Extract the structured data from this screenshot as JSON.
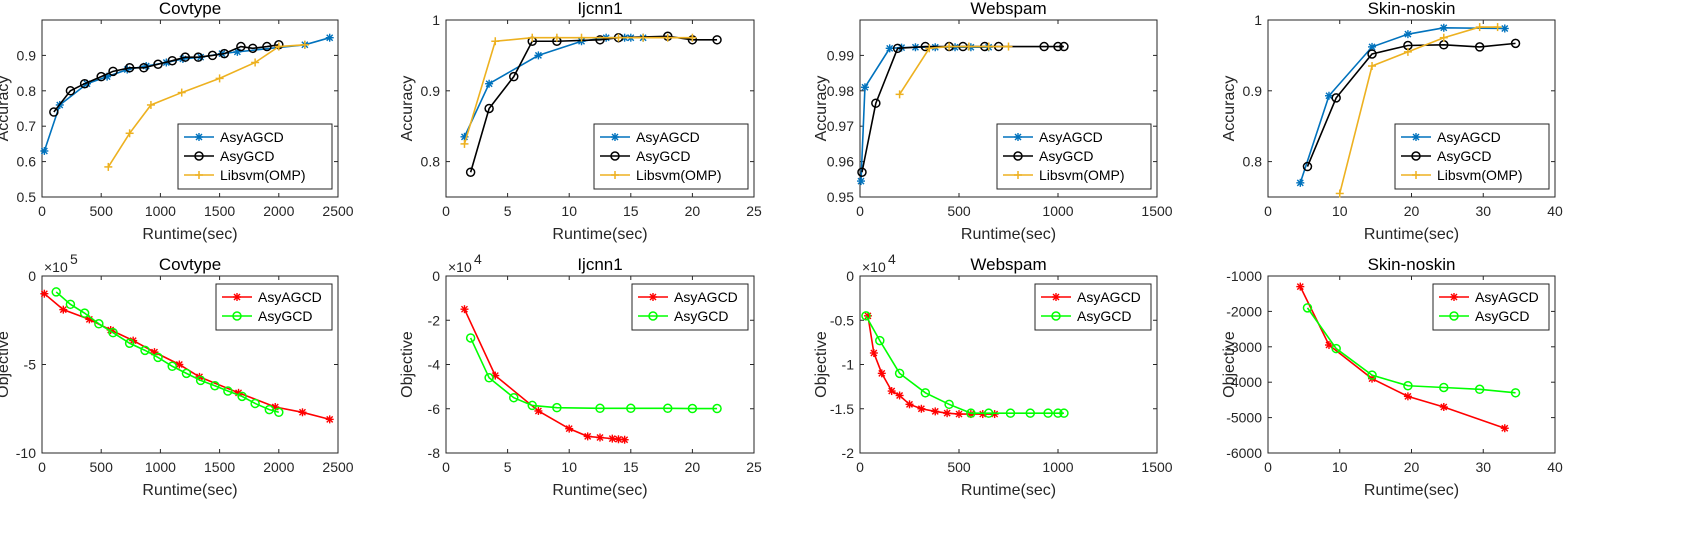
{
  "chart_data": [
    {
      "type": "line",
      "title": "Covtype",
      "xlabel": "Runtime(sec)",
      "ylabel": "Accuracy",
      "xlim": [
        0,
        2500
      ],
      "ylim": [
        0.5,
        1.0
      ],
      "xticks": [
        0,
        500,
        1000,
        1500,
        2000,
        2500
      ],
      "yticks": [
        0.5,
        0.6,
        0.7,
        0.8,
        0.9
      ],
      "ytick_labels": [
        "0.5",
        "0.6",
        "0.7",
        "0.8",
        "0.9"
      ],
      "legend": "bottom-right",
      "series": [
        {
          "name": "AsyAGCD",
          "color": "#0072BD",
          "marker": "asterisk",
          "x": [
            20,
            150,
            380,
            550,
            720,
            880,
            1050,
            1190,
            1340,
            1520,
            1650,
            2220,
            2430
          ],
          "y": [
            0.63,
            0.76,
            0.82,
            0.84,
            0.86,
            0.87,
            0.88,
            0.89,
            0.895,
            0.905,
            0.91,
            0.93,
            0.95
          ]
        },
        {
          "name": "AsyGCD",
          "color": "#000000",
          "marker": "circle",
          "x": [
            100,
            240,
            360,
            500,
            600,
            740,
            860,
            980,
            1100,
            1210,
            1320,
            1440,
            1540,
            1680,
            1780,
            1900,
            2000
          ],
          "y": [
            0.74,
            0.8,
            0.82,
            0.84,
            0.855,
            0.865,
            0.865,
            0.875,
            0.885,
            0.895,
            0.895,
            0.9,
            0.905,
            0.925,
            0.92,
            0.925,
            0.93
          ]
        },
        {
          "name": "Libsvm(OMP)",
          "color": "#EDB120",
          "marker": "plus",
          "x": [
            560,
            740,
            920,
            1180,
            1500,
            1800,
            2000,
            2220
          ],
          "y": [
            0.585,
            0.68,
            0.76,
            0.795,
            0.835,
            0.88,
            0.925,
            0.93
          ]
        }
      ]
    },
    {
      "type": "line",
      "title": "Ijcnn1",
      "xlabel": "Runtime(sec)",
      "ylabel": "Accuracy",
      "xlim": [
        0,
        25
      ],
      "ylim": [
        0.75,
        1.0
      ],
      "xticks": [
        0,
        5,
        10,
        15,
        20,
        25
      ],
      "yticks": [
        0.8,
        0.9,
        1.0
      ],
      "ytick_labels": [
        "0.8",
        "0.9",
        "1"
      ],
      "legend": "bottom-right",
      "series": [
        {
          "name": "AsyAGCD",
          "color": "#0072BD",
          "marker": "asterisk",
          "x": [
            1.5,
            3.5,
            7.5,
            11,
            13,
            14.5,
            15,
            16
          ],
          "y": [
            0.835,
            0.91,
            0.95,
            0.97,
            0.975,
            0.975,
            0.975,
            0.975
          ]
        },
        {
          "name": "AsyGCD",
          "color": "#000000",
          "marker": "circle",
          "x": [
            2,
            3.5,
            5.5,
            7,
            9,
            12.5,
            14,
            18,
            20,
            22
          ],
          "y": [
            0.785,
            0.875,
            0.92,
            0.97,
            0.97,
            0.972,
            0.975,
            0.977,
            0.972,
            0.972
          ]
        },
        {
          "name": "Libsvm(OMP)",
          "color": "#EDB120",
          "marker": "plus",
          "x": [
            1.5,
            4,
            7,
            9,
            11,
            14,
            16,
            18,
            20
          ],
          "y": [
            0.825,
            0.97,
            0.975,
            0.975,
            0.975,
            0.975,
            0.975,
            0.975,
            0.975
          ]
        }
      ]
    },
    {
      "type": "line",
      "title": "Webspam",
      "xlabel": "Runtime(sec)",
      "ylabel": "Accuracy",
      "xlim": [
        0,
        1500
      ],
      "ylim": [
        0.95,
        1.0
      ],
      "xticks": [
        0,
        500,
        1000,
        1500
      ],
      "yticks": [
        0.95,
        0.96,
        0.97,
        0.98,
        0.99
      ],
      "ytick_labels": [
        "0.95",
        "0.96",
        "0.97",
        "0.98",
        "0.99"
      ],
      "legend": "bottom-right",
      "series": [
        {
          "name": "AsyAGCD",
          "color": "#0072BD",
          "marker": "asterisk",
          "x": [
            5,
            25,
            150,
            210,
            280,
            380,
            480,
            560,
            650
          ],
          "y": [
            0.9545,
            0.981,
            0.992,
            0.9922,
            0.9923,
            0.9923,
            0.9923,
            0.9923,
            0.9923
          ]
        },
        {
          "name": "AsyGCD",
          "color": "#000000",
          "marker": "circle",
          "x": [
            10,
            80,
            190,
            330,
            450,
            520,
            630,
            700,
            930,
            1000,
            1030
          ],
          "y": [
            0.957,
            0.9765,
            0.992,
            0.9925,
            0.9925,
            0.9925,
            0.9925,
            0.9925,
            0.9925,
            0.9925,
            0.9925
          ]
        },
        {
          "name": "Libsvm(OMP)",
          "color": "#EDB120",
          "marker": "plus",
          "x": [
            200,
            350,
            450,
            550,
            650,
            750
          ],
          "y": [
            0.979,
            0.992,
            0.9925,
            0.9925,
            0.9925,
            0.9925
          ]
        }
      ]
    },
    {
      "type": "line",
      "title": "Skin-noskin",
      "xlabel": "Runtime(sec)",
      "ylabel": "Accuracy",
      "xlim": [
        0,
        40
      ],
      "ylim": [
        0.75,
        1.0
      ],
      "xticks": [
        0,
        10,
        20,
        30,
        40
      ],
      "yticks": [
        0.8,
        0.9,
        1.0
      ],
      "ytick_labels": [
        "0.8",
        "0.9",
        "1"
      ],
      "legend": "bottom-right",
      "series": [
        {
          "name": "AsyAGCD",
          "color": "#0072BD",
          "marker": "asterisk",
          "x": [
            4.5,
            8.5,
            14.5,
            19.5,
            24.5,
            33
          ],
          "y": [
            0.77,
            0.893,
            0.962,
            0.98,
            0.989,
            0.988
          ]
        },
        {
          "name": "AsyGCD",
          "color": "#000000",
          "marker": "circle",
          "x": [
            5.5,
            9.5,
            14.5,
            19.5,
            24.5,
            29.5,
            34.5
          ],
          "y": [
            0.793,
            0.89,
            0.952,
            0.964,
            0.965,
            0.962,
            0.967
          ]
        },
        {
          "name": "Libsvm(OMP)",
          "color": "#EDB120",
          "marker": "plus",
          "x": [
            10,
            14.5,
            19.5,
            24.5,
            29.5,
            32
          ],
          "y": [
            0.755,
            0.935,
            0.955,
            0.975,
            0.99,
            0.99
          ]
        }
      ]
    },
    {
      "type": "line",
      "title": "Covtype",
      "xlabel": "Runtime(sec)",
      "ylabel": "Objective",
      "exponent": "×10",
      "exponent_power": "5",
      "xlim": [
        0,
        2500
      ],
      "ylim": [
        -10,
        0
      ],
      "xticks": [
        0,
        500,
        1000,
        1500,
        2000,
        2500
      ],
      "yticks": [
        -10,
        -5,
        0
      ],
      "ytick_labels": [
        "-10",
        "-5",
        "0"
      ],
      "legend": "top-right",
      "series": [
        {
          "name": "AsyAGCD",
          "color": "#FF0000",
          "marker": "asterisk",
          "x": [
            20,
            180,
            400,
            580,
            770,
            950,
            1160,
            1330,
            1660,
            1970,
            2200,
            2430
          ],
          "y": [
            -1.0,
            -1.9,
            -2.45,
            -3.05,
            -3.65,
            -4.3,
            -5.0,
            -5.7,
            -6.6,
            -7.4,
            -7.7,
            -8.1
          ]
        },
        {
          "name": "AsyGCD",
          "color": "#00FF00",
          "marker": "circle",
          "x": [
            120,
            240,
            360,
            480,
            600,
            740,
            870,
            980,
            1100,
            1220,
            1340,
            1460,
            1570,
            1690,
            1800,
            1920,
            2000
          ],
          "y": [
            -0.9,
            -1.6,
            -2.1,
            -2.7,
            -3.2,
            -3.8,
            -4.2,
            -4.6,
            -5.1,
            -5.5,
            -5.9,
            -6.2,
            -6.5,
            -6.8,
            -7.2,
            -7.55,
            -7.7
          ]
        }
      ]
    },
    {
      "type": "line",
      "title": "Ijcnn1",
      "xlabel": "Runtime(sec)",
      "ylabel": "Objective",
      "exponent": "×10",
      "exponent_power": "4",
      "xlim": [
        0,
        25
      ],
      "ylim": [
        -8,
        0
      ],
      "xticks": [
        0,
        5,
        10,
        15,
        20,
        25
      ],
      "yticks": [
        -8,
        -6,
        -4,
        -2,
        0
      ],
      "ytick_labels": [
        "-8",
        "-6",
        "-4",
        "-2",
        "0"
      ],
      "legend": "top-right",
      "series": [
        {
          "name": "AsyAGCD",
          "color": "#FF0000",
          "marker": "asterisk",
          "x": [
            1.5,
            4,
            7.5,
            10,
            11.5,
            12.5,
            13.5,
            14,
            14.5
          ],
          "y": [
            -1.5,
            -4.5,
            -6.1,
            -6.9,
            -7.25,
            -7.3,
            -7.35,
            -7.38,
            -7.4
          ]
        },
        {
          "name": "AsyGCD",
          "color": "#00FF00",
          "marker": "circle",
          "x": [
            2,
            3.5,
            5.5,
            7,
            9,
            12.5,
            15,
            18,
            20,
            22
          ],
          "y": [
            -2.8,
            -4.6,
            -5.5,
            -5.85,
            -5.95,
            -5.98,
            -5.98,
            -5.98,
            -5.99,
            -5.99
          ]
        }
      ]
    },
    {
      "type": "line",
      "title": "Webspam",
      "xlabel": "Runtime(sec)",
      "ylabel": "Objective",
      "exponent": "×10",
      "exponent_power": "4",
      "xlim": [
        0,
        1500
      ],
      "ylim": [
        -2,
        0
      ],
      "xticks": [
        0,
        500,
        1000,
        1500
      ],
      "yticks": [
        -2,
        -1.5,
        -1,
        -0.5,
        0
      ],
      "ytick_labels": [
        "-2",
        "-1.5",
        "-1",
        "-0.5",
        "0"
      ],
      "legend": "top-right",
      "series": [
        {
          "name": "AsyAGCD",
          "color": "#FF0000",
          "marker": "asterisk",
          "x": [
            40,
            70,
            110,
            160,
            200,
            250,
            310,
            380,
            440,
            500,
            560,
            620,
            680
          ],
          "y": [
            -0.45,
            -0.87,
            -1.1,
            -1.3,
            -1.35,
            -1.45,
            -1.5,
            -1.53,
            -1.55,
            -1.56,
            -1.56,
            -1.56,
            -1.56
          ]
        },
        {
          "name": "AsyGCD",
          "color": "#00FF00",
          "marker": "circle",
          "x": [
            30,
            100,
            200,
            330,
            450,
            560,
            650,
            760,
            860,
            950,
            1000,
            1030
          ],
          "y": [
            -0.45,
            -0.73,
            -1.1,
            -1.32,
            -1.45,
            -1.55,
            -1.55,
            -1.55,
            -1.55,
            -1.55,
            -1.55,
            -1.55
          ]
        }
      ]
    },
    {
      "type": "line",
      "title": "Skin-noskin",
      "xlabel": "Runtime(sec)",
      "ylabel": "Objective",
      "xlim": [
        0,
        40
      ],
      "ylim": [
        -6000,
        -1000
      ],
      "xticks": [
        0,
        10,
        20,
        30,
        40
      ],
      "yticks": [
        -6000,
        -5000,
        -4000,
        -3000,
        -2000,
        -1000
      ],
      "ytick_labels": [
        "-6000",
        "-5000",
        "-4000",
        "-3000",
        "-2000",
        "-1000"
      ],
      "legend": "top-right",
      "series": [
        {
          "name": "AsyAGCD",
          "color": "#FF0000",
          "marker": "asterisk",
          "x": [
            4.5,
            8.5,
            14.5,
            19.5,
            24.5,
            33
          ],
          "y": [
            -1300,
            -2950,
            -3900,
            -4400,
            -4700,
            -5300
          ]
        },
        {
          "name": "AsyGCD",
          "color": "#00FF00",
          "marker": "circle",
          "x": [
            5.5,
            9.5,
            14.5,
            19.5,
            24.5,
            29.5,
            34.5
          ],
          "y": [
            -1900,
            -3050,
            -3800,
            -4100,
            -4150,
            -4200,
            -4300
          ]
        }
      ]
    }
  ]
}
